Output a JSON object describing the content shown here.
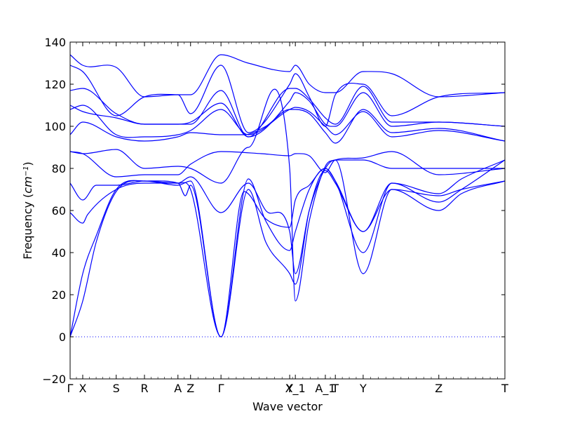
{
  "chart_data": {
    "type": "line",
    "xlabel": "Wave vector",
    "ylabel": "Frequency (cm⁻¹)",
    "ylabel_text": "Frequency (",
    "ylabel_unit": "cm",
    "ylabel_exp": "−1",
    "ylabel_close": ")",
    "ylim": [
      -20,
      140
    ],
    "xlim": [
      0,
      1
    ],
    "yticks": [
      -20,
      0,
      20,
      40,
      60,
      80,
      100,
      120,
      140
    ],
    "ytick_labels": [
      "−20",
      "0",
      "20",
      "40",
      "60",
      "80",
      "100",
      "120",
      "140"
    ],
    "grid": false,
    "zero_line": {
      "y": 0,
      "style": "dotted",
      "color": "#0000ff"
    },
    "line_color": "#0000ff",
    "high_symmetry_points": [
      {
        "label": "Γ",
        "x": 0.0
      },
      {
        "label": "X",
        "x": 0.029
      },
      {
        "label": "S",
        "x": 0.106
      },
      {
        "label": "R",
        "x": 0.171
      },
      {
        "label": "A",
        "x": 0.248
      },
      {
        "label": "Z",
        "x": 0.277
      },
      {
        "label": "Γ",
        "x": 0.347
      },
      {
        "label": "Y",
        "x": 0.505
      },
      {
        "label": "X_1",
        "x": 0.518
      },
      {
        "label": "A_1",
        "x": 0.587
      },
      {
        "label": "T",
        "x": 0.61
      },
      {
        "label": "Y",
        "x": 0.674
      },
      {
        "label": "Z",
        "x": 0.848
      },
      {
        "label": "T",
        "x": 1.0
      }
    ],
    "series": [
      {
        "points": [
          [
            0,
            59
          ],
          [
            0.029,
            54
          ],
          [
            0.04,
            58
          ],
          [
            0.106,
            70
          ],
          [
            0.171,
            73
          ],
          [
            0.248,
            73
          ],
          [
            0.265,
            67
          ],
          [
            0.277,
            72
          ],
          [
            0.347,
            0
          ],
          [
            0.4,
            69
          ],
          [
            0.45,
            56
          ],
          [
            0.505,
            52
          ],
          [
            0.518,
            65
          ],
          [
            0.55,
            72
          ],
          [
            0.587,
            80
          ],
          [
            0.61,
            74
          ],
          [
            0.674,
            50
          ],
          [
            0.74,
            73
          ],
          [
            0.848,
            68
          ],
          [
            0.9,
            75
          ],
          [
            1.0,
            84
          ]
        ]
      },
      {
        "points": [
          [
            0,
            73
          ],
          [
            0.029,
            65
          ],
          [
            0.06,
            72
          ],
          [
            0.106,
            72
          ],
          [
            0.171,
            74
          ],
          [
            0.248,
            73
          ],
          [
            0.277,
            76
          ],
          [
            0.347,
            59
          ],
          [
            0.41,
            73
          ],
          [
            0.45,
            60
          ],
          [
            0.505,
            50
          ],
          [
            0.518,
            30
          ],
          [
            0.55,
            60
          ],
          [
            0.587,
            80
          ],
          [
            0.61,
            84
          ],
          [
            0.674,
            30
          ],
          [
            0.74,
            70
          ],
          [
            0.848,
            60
          ],
          [
            0.9,
            68
          ],
          [
            1.0,
            74
          ]
        ]
      },
      {
        "points": [
          [
            0,
            88
          ],
          [
            0.029,
            87
          ],
          [
            0.106,
            76
          ],
          [
            0.171,
            77
          ],
          [
            0.248,
            77
          ],
          [
            0.277,
            82
          ],
          [
            0.347,
            88
          ],
          [
            0.44,
            87
          ],
          [
            0.505,
            86
          ],
          [
            0.518,
            87
          ],
          [
            0.55,
            86
          ],
          [
            0.587,
            78
          ],
          [
            0.61,
            84
          ],
          [
            0.674,
            84
          ],
          [
            0.74,
            80
          ],
          [
            0.848,
            80
          ],
          [
            1.0,
            80
          ]
        ]
      },
      {
        "points": [
          [
            0,
            88
          ],
          [
            0.029,
            87
          ],
          [
            0.106,
            89
          ],
          [
            0.171,
            80
          ],
          [
            0.248,
            81
          ],
          [
            0.277,
            80
          ],
          [
            0.347,
            73
          ],
          [
            0.41,
            90
          ],
          [
            0.505,
            80
          ],
          [
            0.518,
            17
          ],
          [
            0.55,
            55
          ],
          [
            0.587,
            81
          ],
          [
            0.61,
            84
          ],
          [
            0.674,
            85
          ],
          [
            0.74,
            88
          ],
          [
            0.848,
            77
          ],
          [
            1.0,
            80
          ]
        ]
      },
      {
        "points": [
          [
            0,
            0
          ],
          [
            0.029,
            17
          ],
          [
            0.06,
            45
          ],
          [
            0.106,
            69
          ],
          [
            0.171,
            74
          ],
          [
            0.248,
            72
          ],
          [
            0.277,
            74
          ],
          [
            0.347,
            0
          ],
          [
            0.41,
            75
          ],
          [
            0.45,
            55
          ],
          [
            0.505,
            41
          ],
          [
            0.518,
            50
          ],
          [
            0.55,
            70
          ],
          [
            0.587,
            80
          ],
          [
            0.61,
            74
          ],
          [
            0.674,
            40
          ],
          [
            0.74,
            73
          ],
          [
            0.848,
            64
          ],
          [
            0.9,
            70
          ],
          [
            1.0,
            84
          ]
        ]
      },
      {
        "points": [
          [
            0,
            0
          ],
          [
            0.029,
            30
          ],
          [
            0.06,
            48
          ],
          [
            0.106,
            70
          ],
          [
            0.171,
            74
          ],
          [
            0.248,
            73
          ],
          [
            0.277,
            70
          ],
          [
            0.347,
            0
          ],
          [
            0.41,
            70
          ],
          [
            0.45,
            45
          ],
          [
            0.505,
            30
          ],
          [
            0.518,
            25
          ],
          [
            0.55,
            60
          ],
          [
            0.587,
            79
          ],
          [
            0.61,
            73
          ],
          [
            0.674,
            50
          ],
          [
            0.74,
            70
          ],
          [
            0.848,
            67
          ],
          [
            0.9,
            70
          ],
          [
            1.0,
            74
          ]
        ]
      },
      {
        "points": [
          [
            0,
            96
          ],
          [
            0.029,
            102
          ],
          [
            0.106,
            95
          ],
          [
            0.171,
            93
          ],
          [
            0.248,
            95
          ],
          [
            0.277,
            97
          ],
          [
            0.347,
            96
          ],
          [
            0.4,
            96
          ],
          [
            0.45,
            100
          ],
          [
            0.505,
            108
          ],
          [
            0.518,
            108
          ],
          [
            0.55,
            106
          ],
          [
            0.587,
            97
          ],
          [
            0.61,
            92
          ],
          [
            0.674,
            108
          ],
          [
            0.74,
            97
          ],
          [
            0.848,
            99
          ],
          [
            1.0,
            93
          ]
        ]
      },
      {
        "points": [
          [
            0,
            108
          ],
          [
            0.029,
            110
          ],
          [
            0.106,
            96
          ],
          [
            0.171,
            95
          ],
          [
            0.248,
            96
          ],
          [
            0.277,
            98
          ],
          [
            0.347,
            108
          ],
          [
            0.41,
            96
          ],
          [
            0.505,
            108
          ],
          [
            0.518,
            109
          ],
          [
            0.55,
            107
          ],
          [
            0.587,
            100
          ],
          [
            0.61,
            96
          ],
          [
            0.674,
            107
          ],
          [
            0.74,
            95
          ],
          [
            0.848,
            98
          ],
          [
            1.0,
            93
          ]
        ]
      },
      {
        "points": [
          [
            0,
            110
          ],
          [
            0.029,
            107
          ],
          [
            0.106,
            104
          ],
          [
            0.171,
            101
          ],
          [
            0.248,
            101
          ],
          [
            0.277,
            102
          ],
          [
            0.347,
            111
          ],
          [
            0.41,
            95
          ],
          [
            0.505,
            112
          ],
          [
            0.518,
            116
          ],
          [
            0.55,
            112
          ],
          [
            0.587,
            101
          ],
          [
            0.61,
            100
          ],
          [
            0.674,
            116
          ],
          [
            0.74,
            100
          ],
          [
            0.848,
            102
          ],
          [
            1.0,
            100
          ]
        ]
      },
      {
        "points": [
          [
            0,
            117
          ],
          [
            0.029,
            118
          ],
          [
            0.106,
            106
          ],
          [
            0.171,
            101
          ],
          [
            0.248,
            101
          ],
          [
            0.277,
            101
          ],
          [
            0.347,
            117
          ],
          [
            0.41,
            95
          ],
          [
            0.505,
            118
          ],
          [
            0.518,
            118
          ],
          [
            0.55,
            113
          ],
          [
            0.587,
            104
          ],
          [
            0.61,
            101
          ],
          [
            0.674,
            119
          ],
          [
            0.74,
            102
          ],
          [
            0.848,
            102
          ],
          [
            1.0,
            100
          ]
        ]
      },
      {
        "points": [
          [
            0,
            129
          ],
          [
            0.029,
            126
          ],
          [
            0.106,
            105
          ],
          [
            0.171,
            114
          ],
          [
            0.248,
            115
          ],
          [
            0.277,
            106
          ],
          [
            0.347,
            129
          ],
          [
            0.41,
            97
          ],
          [
            0.505,
            120
          ],
          [
            0.518,
            125
          ],
          [
            0.55,
            114
          ],
          [
            0.587,
            100
          ],
          [
            0.61,
            115
          ],
          [
            0.674,
            120
          ],
          [
            0.74,
            105
          ],
          [
            0.848,
            114
          ],
          [
            1.0,
            116
          ]
        ]
      },
      {
        "points": [
          [
            0,
            134
          ],
          [
            0.029,
            129
          ],
          [
            0.106,
            128
          ],
          [
            0.171,
            114
          ],
          [
            0.248,
            115
          ],
          [
            0.277,
            115
          ],
          [
            0.347,
            134
          ],
          [
            0.41,
            130
          ],
          [
            0.505,
            126
          ],
          [
            0.518,
            129
          ],
          [
            0.55,
            120
          ],
          [
            0.587,
            116
          ],
          [
            0.61,
            116
          ],
          [
            0.674,
            126
          ],
          [
            0.74,
            125
          ],
          [
            0.848,
            114
          ],
          [
            1.0,
            116
          ]
        ]
      }
    ]
  }
}
